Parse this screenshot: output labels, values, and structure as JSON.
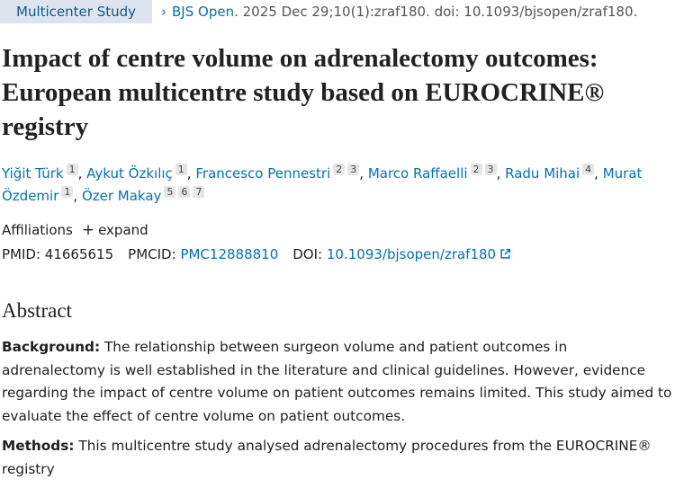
{
  "header": {
    "badge": "Multicenter Study",
    "journal": "BJS Open.",
    "citation": "2025 Dec 29;10(1):zraf180. doi: 10.1093/bjsopen/zraf180."
  },
  "title": "Impact of centre volume on adrenalectomy outcomes: European multicentre study based on EUROCRINE® registry",
  "author_separator": ",",
  "authors": [
    {
      "name": "Yiğit Türk",
      "affiliations": [
        "1"
      ]
    },
    {
      "name": "Aykut Özkılıç",
      "affiliations": [
        "1"
      ]
    },
    {
      "name": "Francesco Pennestri",
      "affiliations": [
        "2",
        "3"
      ]
    },
    {
      "name": "Marco Raffaelli",
      "affiliations": [
        "2",
        "3"
      ]
    },
    {
      "name": "Radu Mihai",
      "affiliations": [
        "4"
      ]
    },
    {
      "name": "Murat Özdemir",
      "affiliations": [
        "1"
      ]
    },
    {
      "name": "Özer Makay",
      "affiliations": [
        "5",
        "6",
        "7"
      ]
    }
  ],
  "affiliations": {
    "label": "Affiliations",
    "toggle": "expand"
  },
  "identifiers": [
    {
      "label": "PMID:",
      "value": "41665615"
    },
    {
      "label": "PMCID:",
      "value": "PMC12888810"
    },
    {
      "label": "DOI:",
      "value": "10.1093/bjsopen/zraf180"
    }
  ],
  "abstract": {
    "heading": "Abstract",
    "sections": [
      {
        "label": "Background:",
        "text": "The relationship between surgeon volume and patient outcomes in adrenalectomy is well established in the literature and clinical guidelines. However, evidence regarding the impact of centre volume on patient outcomes remains limited. This study aimed to evaluate the effect of centre volume on patient outcomes."
      },
      {
        "label": "Methods:",
        "text": "This multicentre study analysed adrenalectomy procedures from the EUROCRINE® registry"
      }
    ]
  }
}
